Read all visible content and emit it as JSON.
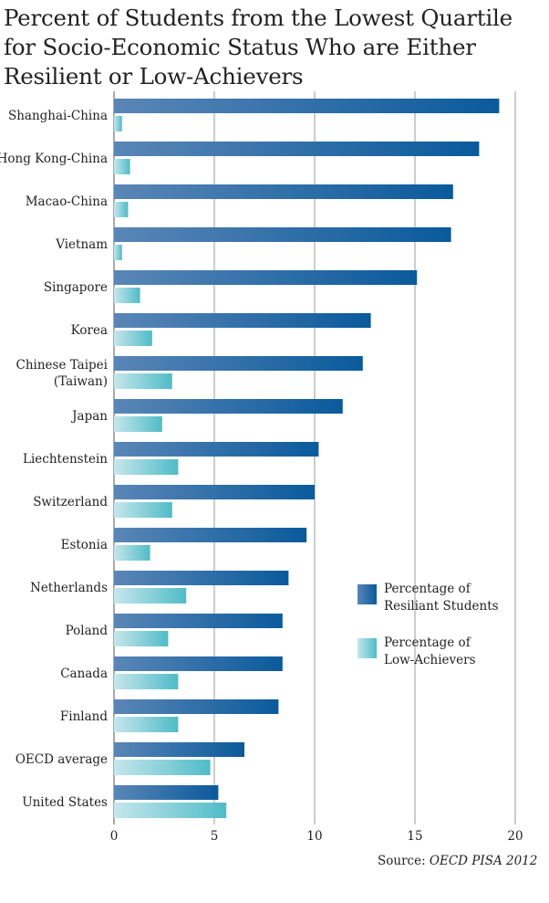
{
  "title": "Percent of Students from the Lowest Quartile for Socio-Economic Status Who are Either Resilient or Low-Achievers",
  "source_label": "Source:",
  "source_text": "OECD PISA 2012",
  "chart_data": {
    "type": "bar",
    "orientation": "horizontal",
    "title": "Percent of Students from the Lowest Quartile for Socio-Economic Status Who are Either Resilient or Low-Achievers",
    "xlabel": "",
    "ylabel": "",
    "xlim": [
      0,
      20
    ],
    "x_ticks": [
      "0",
      "5",
      "10",
      "15",
      "20"
    ],
    "grid": "vertical",
    "legend_position": "right",
    "categories": [
      [
        "Shanghai-China"
      ],
      [
        "Hong Kong-China"
      ],
      [
        "Macao-China"
      ],
      [
        "Vietnam"
      ],
      [
        "Singapore"
      ],
      [
        "Korea"
      ],
      [
        "Chinese Taipei",
        "(Taiwan)"
      ],
      [
        "Japan"
      ],
      [
        "Liechtenstein"
      ],
      [
        "Switzerland"
      ],
      [
        "Estonia"
      ],
      [
        "Netherlands"
      ],
      [
        "Poland"
      ],
      [
        "Canada"
      ],
      [
        "Finland"
      ],
      [
        "OECD average"
      ],
      [
        "United States"
      ]
    ],
    "series": [
      {
        "name": [
          "Percentage of",
          "Resiliant Students"
        ],
        "color": "#0a5a9c",
        "color_light": "#5a86b6",
        "values": [
          19.2,
          18.2,
          16.9,
          16.8,
          15.1,
          12.8,
          12.4,
          11.4,
          10.2,
          10.0,
          9.6,
          8.7,
          8.4,
          8.4,
          8.2,
          6.5,
          5.2
        ]
      },
      {
        "name": [
          "Percentage of",
          "Low-Achievers"
        ],
        "color": "#4fbcc8",
        "color_light": "#c6e6ec",
        "values": [
          0.4,
          0.8,
          0.7,
          0.4,
          1.3,
          1.9,
          2.9,
          2.4,
          3.2,
          2.9,
          1.8,
          3.6,
          2.7,
          3.2,
          3.2,
          4.8,
          5.6
        ]
      }
    ]
  }
}
